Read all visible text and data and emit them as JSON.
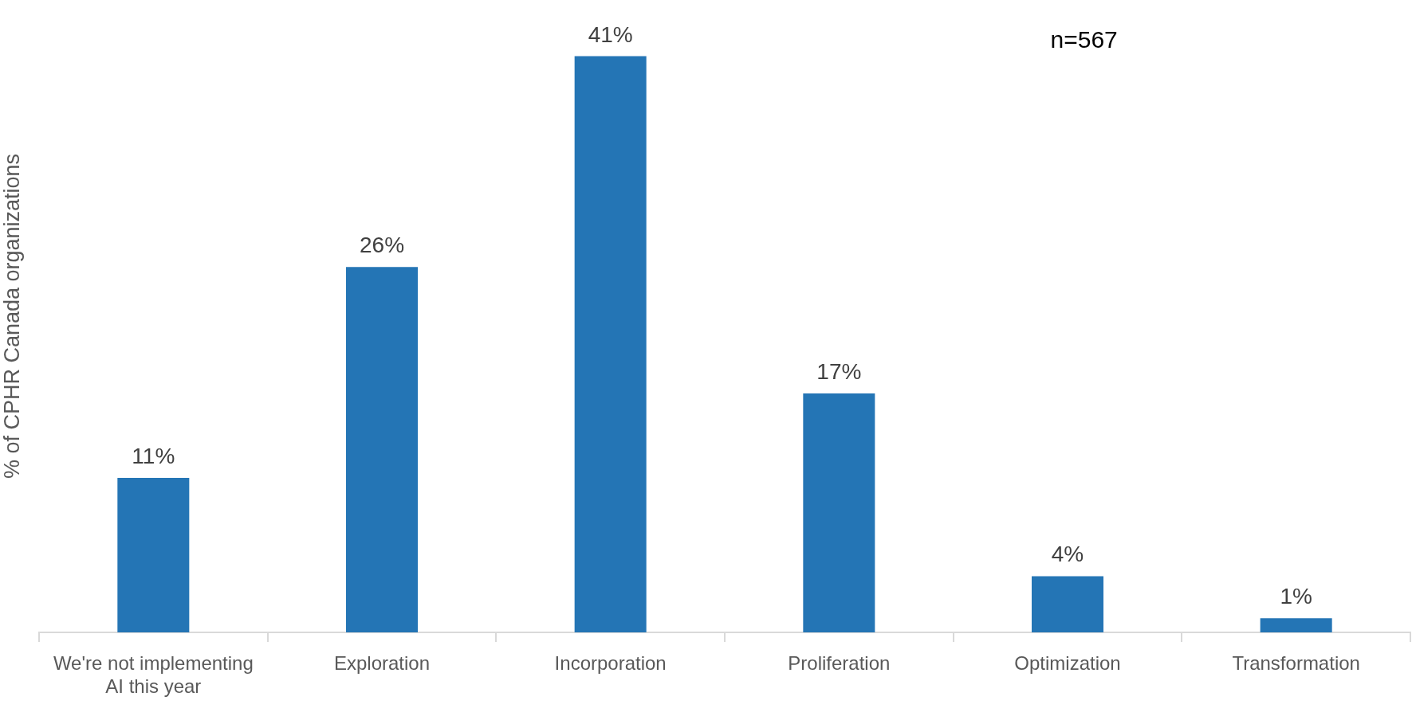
{
  "chart_data": {
    "type": "bar",
    "ylabel": "% of CPHR Canada organizations",
    "annotations": [
      "n=567"
    ],
    "categories": [
      "We're not implementing AI this year",
      "Exploration",
      "Incorporation",
      "Proliferation",
      "Optimization",
      "Transformation"
    ],
    "values": [
      11,
      26,
      41,
      17,
      4,
      1
    ],
    "value_labels": [
      "11%",
      "26%",
      "41%",
      "17%",
      "4%",
      "1%"
    ],
    "color": "#2475b5",
    "tick_labels": "x"
  }
}
